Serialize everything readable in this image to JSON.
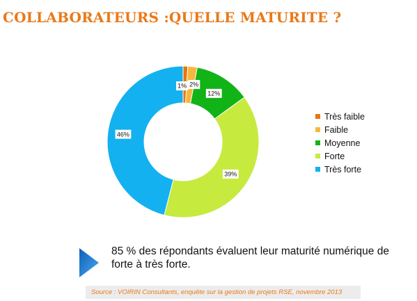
{
  "title": "COLLABORATEURS :QUELLE MATURITE ?",
  "chart_data": {
    "type": "pie",
    "donut": true,
    "title": "",
    "legend_position": "right",
    "categories": [
      "Très faible",
      "Faible",
      "Moyenne",
      "Forte",
      "Très forte"
    ],
    "values": [
      1,
      2,
      12,
      39,
      46
    ],
    "labels": [
      "1%",
      "2%",
      "12%",
      "39%",
      "46%"
    ],
    "colors": [
      "#e8750e",
      "#f5b73c",
      "#12b317",
      "#c7ea3f",
      "#13b1ef"
    ]
  },
  "note": {
    "text": "85 % des répondants évaluent leur maturité numérique de forte à très forte.",
    "arrow_icon": "play-arrow-icon",
    "arrow_colors": [
      "#0d5fb8",
      "#4aa9ef"
    ]
  },
  "source": "Source : VOIRIN Consultants, enquête sur la gestion de projets RSE, novembre 2013"
}
